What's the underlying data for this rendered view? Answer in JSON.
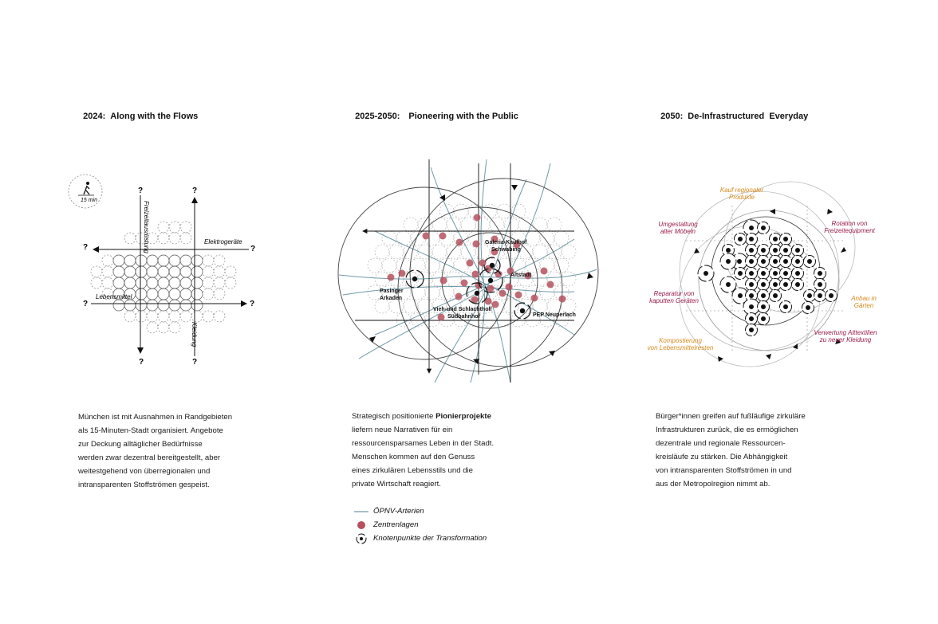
{
  "columns": [
    {
      "year": "2024:",
      "title": "Along with the Flows"
    },
    {
      "year": "2025-2050:",
      "title": "Pioneering with the Public"
    },
    {
      "year": "2050:",
      "title": "De-Infrastructured  Everyday"
    }
  ],
  "diagram1": {
    "walk_label": "15 min",
    "question_mark": "?",
    "labels": {
      "freizeit": "Freizeitausrüstung",
      "elektro": "Elektrogeräte",
      "lebensmittel": "Lebensmittel",
      "kleidung": "Kleidung"
    }
  },
  "diagram2": {
    "places": {
      "galeria": "Galeria-Kaufhof",
      "schwabing": "Schwabing",
      "altstadt": "Altstadt",
      "pasing1": "Pasinger",
      "pasing2": "Arkaden",
      "vieh1": "Vieh-und Schlachthof/",
      "vieh2": "Südbahnhof",
      "pep": "PEP Neuperlach"
    }
  },
  "diagram3": {
    "labels": {
      "kauf1": "Kauf regionaler",
      "kauf2": "Produkte",
      "umgest1": "Umgestaltung",
      "umgest2": "alter Möbeln",
      "rot1": "Rotation von",
      "rot2": "Freizeitequipment",
      "rep1": "Reparatur von",
      "rep2": "kaputten Geräten",
      "anbau1": "Anbau in",
      "anbau2": "Gärten",
      "komp1": "Kompostierung",
      "komp2": "von Lebensmittelresten",
      "verw1": "Verwertung Alttextilien",
      "verw2": "zu neuer Kleidung"
    },
    "colors": {
      "orange": "#d98a1c",
      "purple": "#9b1b4a"
    }
  },
  "texts": {
    "col1": [
      "München ist mit Ausnahmen in Randgebieten",
      "als 15-Minuten-Stadt organisiert. Angebote",
      "zur Deckung alltäglicher Bedürfnisse",
      "werden zwar dezentral bereitgestellt, aber",
      "weitestgehend von überregionalen und",
      "intransparenten Stoffströmen gespeist."
    ],
    "col2_line1_pre": "Strategisch positionierte ",
    "col2_line1_bold": "Pionierprojekte",
    "col2_rest": [
      "liefern neue Narrativen für ein",
      "ressourcensparsames Leben in der Stadt.",
      "Menschen kommen auf den Genuss",
      "eines zirkulären Lebensstils und die",
      "private Wirtschaft reagiert."
    ],
    "col3": [
      "Bürger*innen greifen auf fußläufige zirkuläre",
      "Infrastrukturen zurück, die es ermöglichen",
      "dezentrale und regionale Ressourcen-",
      "kreisläufe zu stärken. Die Abhängigkeit",
      "von intransparenten Stoffströmen in und",
      "aus der Metropolregion nimmt ab."
    ]
  },
  "legend": {
    "items": [
      "ÖPNV-Arterien",
      "Zentrenlagen",
      "Knotenpunkte der Transformation"
    ],
    "colors": {
      "transit": "#6f9aa8",
      "center": "#b5525e"
    }
  }
}
